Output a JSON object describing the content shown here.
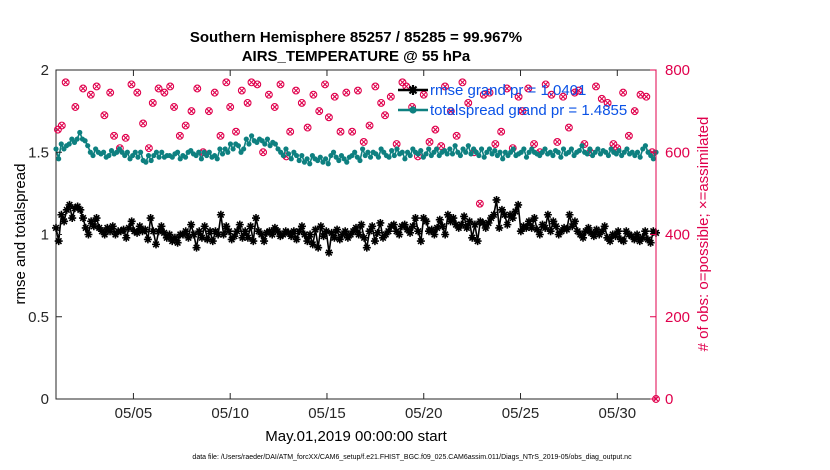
{
  "colors": {
    "rmse": "#000000",
    "totalspread": "#0e8080",
    "obs": "#e0004c",
    "legend_text": "#0a52e6",
    "right_axis": "#e0004c"
  },
  "chart_data": {
    "type": "line",
    "title": "Southern Hemisphere 85257 / 85285 = 99.967%",
    "subtitle": "AIRS_TEMPERATURE @ 55 hPa",
    "xlabel": "May.01,2019 00:00:00 start",
    "ylabel": "rmse and totalspread",
    "y2label": "# of obs: o=possible; ×=assimilated",
    "xticks": [
      "05/05",
      "05/10",
      "05/15",
      "05/20",
      "05/25",
      "05/30"
    ],
    "xtick_values": [
      5,
      10,
      15,
      20,
      25,
      30
    ],
    "xlim": [
      1,
      32
    ],
    "ylim": [
      0,
      2
    ],
    "yticks": [
      "0",
      "0.5",
      "1",
      "1.5",
      "2"
    ],
    "y2lim": [
      0,
      800
    ],
    "y2ticks": [
      "0",
      "200",
      "400",
      "600",
      "800"
    ],
    "legend_position": "top-right",
    "footnote": "data file: /Users/raeder/DAI/ATM_forcXX/CAM6_setup/f.e21.FHIST_BGC.f09_025.CAM6assim.011/Diags_NTrS_2019-05/obs_diag_output.nc",
    "series": [
      {
        "name": "rmse grand pr = 1.0401",
        "axis": "left",
        "marker": "star",
        "values": [
          1.04,
          0.96,
          1.12,
          1.08,
          1.15,
          1.18,
          1.1,
          1.16,
          1.17,
          1.15,
          1.1,
          1.04,
          1.0,
          1.08,
          1.05,
          1.1,
          1.04,
          1.02,
          1.0,
          1.04,
          1.02,
          1.05,
          1.0,
          1.02,
          1.02,
          1.03,
          0.98,
          1.04,
          1.08,
          1.02,
          1.01,
          1.05,
          1.02,
          1.03,
          0.97,
          1.1,
          1.02,
          0.94,
          1.02,
          1.05,
          1.01,
          0.98,
          1.0,
          0.96,
          0.98,
          0.95,
          1.0,
          1.0,
          1.02,
          0.98,
          1.06,
          1.0,
          0.92,
          1.02,
          0.98,
          1.05,
          0.97,
          1.02,
          0.96,
          1.02,
          1.0,
          1.12,
          1.0,
          1.05,
          1.02,
          0.97,
          0.99,
          1.02,
          1.06,
          0.98,
          1.02,
          0.98,
          1.05,
          0.96,
          1.1,
          1.02,
          1.0,
          0.96,
          1.01,
          1.02,
          1.0,
          1.04,
          1.02,
          0.99,
          1.0,
          1.02,
          1.01,
          0.99,
          1.02,
          0.97,
          1.02,
          1.05,
          1.0,
          0.96,
          1.0,
          0.94,
          1.03,
          0.92,
          1.05,
          0.99,
          1.02,
          0.89,
          1.01,
          0.98,
          1.03,
          0.97,
          1.0,
          1.02,
          0.98,
          1.0,
          1.02,
          1.04,
          1.0,
          1.06,
          0.98,
          0.92,
          1.02,
          1.05,
          0.96,
          1.01,
          1.07,
          0.98,
          1.0,
          1.02,
          1.05,
          1.06,
          1.02,
          1.0,
          1.05,
          1.06,
          1.03,
          1.01,
          1.05,
          1.1,
          1.02,
          0.96,
          1.1,
          1.08,
          1.02,
          1.03,
          1.0,
          1.04,
          1.09,
          1.05,
          1.0,
          1.12,
          1.08,
          1.1,
          1.06,
          1.04,
          1.06,
          1.11,
          1.04,
          1.08,
          0.98,
          1.06,
          0.96,
          1.08,
          1.07,
          1.04,
          1.07,
          1.1,
          1.12,
          1.21,
          1.04,
          1.15,
          1.12,
          1.06,
          1.12,
          1.1,
          1.14,
          1.18,
          1.02,
          1.05,
          1.04,
          1.08,
          1.04,
          1.1,
          1.03,
          1.0,
          1.06,
          1.04,
          1.12,
          1.02,
          1.08,
          1.05,
          1.0,
          1.02,
          1.04,
          1.03,
          1.12,
          1.05,
          1.08,
          1.02,
          1.0,
          0.98,
          1.02,
          1.04,
          1.01,
          0.99,
          1.03,
          1.0,
          1.02,
          1.05,
          0.98,
          0.96,
          1.0,
          0.99,
          1.02,
          0.97,
          0.96,
          1.02,
          1.0,
          0.99,
          0.97,
          1.0,
          0.96,
          0.98,
          1.02,
          0.97,
          0.95,
          1.02,
          1.01
        ]
      },
      {
        "name": "totalspread grand pr = 1.4855",
        "axis": "left",
        "marker": "dot",
        "values": [
          1.52,
          1.46,
          1.55,
          1.52,
          1.54,
          1.55,
          1.58,
          1.56,
          1.58,
          1.62,
          1.58,
          1.57,
          1.54,
          1.5,
          1.48,
          1.52,
          1.5,
          1.49,
          1.5,
          1.47,
          1.48,
          1.51,
          1.49,
          1.5,
          1.52,
          1.5,
          1.48,
          1.5,
          1.46,
          1.48,
          1.5,
          1.47,
          1.5,
          1.45,
          1.44,
          1.48,
          1.45,
          1.48,
          1.5,
          1.47,
          1.5,
          1.47,
          1.48,
          1.48,
          1.47,
          1.49,
          1.5,
          1.46,
          1.48,
          1.47,
          1.5,
          1.51,
          1.49,
          1.48,
          1.5,
          1.46,
          1.5,
          1.48,
          1.5,
          1.47,
          1.48,
          1.46,
          1.52,
          1.49,
          1.52,
          1.5,
          1.55,
          1.52,
          1.55,
          1.54,
          1.5,
          1.52,
          1.58,
          1.55,
          1.6,
          1.57,
          1.56,
          1.58,
          1.57,
          1.55,
          1.58,
          1.54,
          1.56,
          1.55,
          1.52,
          1.5,
          1.48,
          1.52,
          1.49,
          1.46,
          1.5,
          1.48,
          1.45,
          1.48,
          1.44,
          1.46,
          1.43,
          1.48,
          1.46,
          1.45,
          1.47,
          1.44,
          1.46,
          1.43,
          1.48,
          1.5,
          1.47,
          1.45,
          1.48,
          1.46,
          1.44,
          1.47,
          1.48,
          1.5,
          1.47,
          1.45,
          1.52,
          1.48,
          1.5,
          1.47,
          1.5,
          1.49,
          1.47,
          1.52,
          1.5,
          1.48,
          1.47,
          1.51,
          1.48,
          1.52,
          1.49,
          1.5,
          1.46,
          1.5,
          1.48,
          1.52,
          1.5,
          1.49,
          1.51,
          1.47,
          1.49,
          1.52,
          1.48,
          1.5,
          1.52,
          1.48,
          1.5,
          1.51,
          1.49,
          1.52,
          1.49,
          1.54,
          1.5,
          1.48,
          1.52,
          1.5,
          1.54,
          1.49,
          1.52,
          1.5,
          1.48,
          1.52,
          1.47,
          1.5,
          1.52,
          1.49,
          1.51,
          1.48,
          1.5,
          1.46,
          1.5,
          1.48,
          1.5,
          1.52,
          1.48,
          1.49,
          1.5,
          1.52,
          1.47,
          1.5,
          1.52,
          1.5,
          1.49,
          1.48,
          1.5,
          1.52,
          1.49,
          1.5,
          1.48,
          1.51,
          1.5,
          1.47,
          1.52,
          1.49,
          1.5,
          1.52,
          1.48,
          1.5,
          1.51,
          1.54,
          1.5,
          1.49,
          1.52,
          1.48,
          1.5,
          1.52,
          1.49,
          1.51,
          1.5,
          1.48,
          1.52,
          1.5,
          1.49,
          1.51,
          1.48,
          1.5,
          1.52,
          1.49,
          1.5,
          1.48,
          1.5,
          1.47,
          1.52,
          1.54,
          1.5,
          1.48,
          1.46,
          1.5
        ]
      },
      {
        "name": "# of obs",
        "axis": "right",
        "marker": "circle-x",
        "points": [
          [
            1.1,
            655
          ],
          [
            1.3,
            665
          ],
          [
            1.5,
            770
          ],
          [
            2.0,
            710
          ],
          [
            2.4,
            755
          ],
          [
            2.8,
            740
          ],
          [
            3.1,
            760
          ],
          [
            3.5,
            690
          ],
          [
            3.8,
            745
          ],
          [
            4.0,
            640
          ],
          [
            4.3,
            610
          ],
          [
            4.6,
            635
          ],
          [
            4.9,
            765
          ],
          [
            5.2,
            745
          ],
          [
            5.5,
            670
          ],
          [
            5.8,
            610
          ],
          [
            6.0,
            720
          ],
          [
            6.3,
            755
          ],
          [
            6.6,
            745
          ],
          [
            6.9,
            760
          ],
          [
            7.1,
            710
          ],
          [
            7.4,
            640
          ],
          [
            7.7,
            665
          ],
          [
            8.0,
            700
          ],
          [
            8.3,
            755
          ],
          [
            8.6,
            600
          ],
          [
            8.9,
            700
          ],
          [
            9.2,
            745
          ],
          [
            9.5,
            640
          ],
          [
            9.8,
            770
          ],
          [
            10.0,
            710
          ],
          [
            10.3,
            650
          ],
          [
            10.6,
            750
          ],
          [
            10.9,
            720
          ],
          [
            11.1,
            770
          ],
          [
            11.4,
            765
          ],
          [
            11.7,
            600
          ],
          [
            12.0,
            740
          ],
          [
            12.3,
            710
          ],
          [
            12.6,
            765
          ],
          [
            12.9,
            590
          ],
          [
            13.1,
            650
          ],
          [
            13.4,
            750
          ],
          [
            13.7,
            720
          ],
          [
            14.0,
            660
          ],
          [
            14.3,
            740
          ],
          [
            14.6,
            700
          ],
          [
            14.9,
            765
          ],
          [
            15.1,
            685
          ],
          [
            15.4,
            735
          ],
          [
            15.7,
            650
          ],
          [
            16.0,
            745
          ],
          [
            16.3,
            650
          ],
          [
            16.6,
            750
          ],
          [
            16.9,
            625
          ],
          [
            17.2,
            665
          ],
          [
            17.5,
            760
          ],
          [
            17.8,
            720
          ],
          [
            18.0,
            690
          ],
          [
            18.3,
            735
          ],
          [
            18.6,
            620
          ],
          [
            18.9,
            770
          ],
          [
            19.1,
            760
          ],
          [
            19.4,
            710
          ],
          [
            19.7,
            590
          ],
          [
            20.0,
            740
          ],
          [
            20.3,
            625
          ],
          [
            20.6,
            655
          ],
          [
            20.9,
            615
          ],
          [
            21.1,
            760
          ],
          [
            21.4,
            700
          ],
          [
            21.7,
            640
          ],
          [
            22.0,
            770
          ],
          [
            22.3,
            720
          ],
          [
            22.6,
            600
          ],
          [
            22.9,
            475
          ],
          [
            23.1,
            740
          ],
          [
            23.4,
            745
          ],
          [
            23.7,
            620
          ],
          [
            24.0,
            650
          ],
          [
            24.3,
            755
          ],
          [
            24.6,
            610
          ],
          [
            24.9,
            735
          ],
          [
            25.1,
            700
          ],
          [
            25.4,
            755
          ],
          [
            25.7,
            620
          ],
          [
            26.0,
            600
          ],
          [
            26.3,
            765
          ],
          [
            26.6,
            740
          ],
          [
            26.9,
            625
          ],
          [
            27.2,
            735
          ],
          [
            27.5,
            660
          ],
          [
            27.8,
            745
          ],
          [
            28.0,
            750
          ],
          [
            28.3,
            620
          ],
          [
            28.6,
            600
          ],
          [
            28.9,
            760
          ],
          [
            29.2,
            730
          ],
          [
            29.5,
            720
          ],
          [
            29.8,
            620
          ],
          [
            30.0,
            610
          ],
          [
            30.3,
            745
          ],
          [
            30.6,
            640
          ],
          [
            30.9,
            700
          ],
          [
            31.2,
            740
          ],
          [
            31.5,
            735
          ],
          [
            31.8,
            600
          ],
          [
            32.0,
            0
          ]
        ]
      }
    ]
  }
}
